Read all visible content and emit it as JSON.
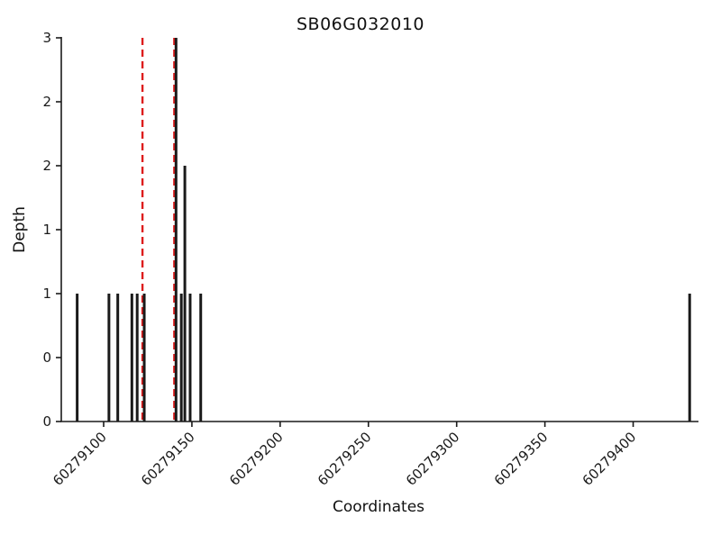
{
  "chart_data": {
    "type": "bar",
    "title": "SB06G032010",
    "xlabel": "Coordinates",
    "ylabel": "Depth",
    "xlim": [
      60279076,
      60279437
    ],
    "ylim": [
      0,
      3
    ],
    "x_ticks": {
      "values": [
        60279100,
        60279150,
        60279200,
        60279250,
        60279300,
        60279350,
        60279400
      ],
      "labels": [
        "60279100",
        "60279150",
        "60279200",
        "60279250",
        "60279300",
        "60279350",
        "60279400"
      ]
    },
    "y_ticks": {
      "values": [
        0,
        0.5,
        1,
        1.5,
        2,
        2.5,
        3
      ],
      "labels": [
        "0",
        "0",
        "1",
        "1",
        "2",
        "2",
        "3"
      ]
    },
    "bars": [
      {
        "x": 60279085,
        "depth": 1
      },
      {
        "x": 60279103,
        "depth": 1
      },
      {
        "x": 60279108,
        "depth": 1
      },
      {
        "x": 60279116,
        "depth": 1
      },
      {
        "x": 60279119,
        "depth": 1
      },
      {
        "x": 60279123,
        "depth": 1
      },
      {
        "x": 60279141,
        "depth": 3
      },
      {
        "x": 60279144,
        "depth": 1
      },
      {
        "x": 60279146,
        "depth": 2
      },
      {
        "x": 60279149,
        "depth": 1
      },
      {
        "x": 60279155,
        "depth": 1
      },
      {
        "x": 60279432,
        "depth": 1
      }
    ],
    "vlines": {
      "style": "dashed",
      "color": "#dd1c1c",
      "positions": [
        60279122,
        60279140
      ]
    },
    "bar_color": "#1a1a1a",
    "axis_color": "#1a1a1a",
    "grid": false,
    "legend": "none"
  }
}
